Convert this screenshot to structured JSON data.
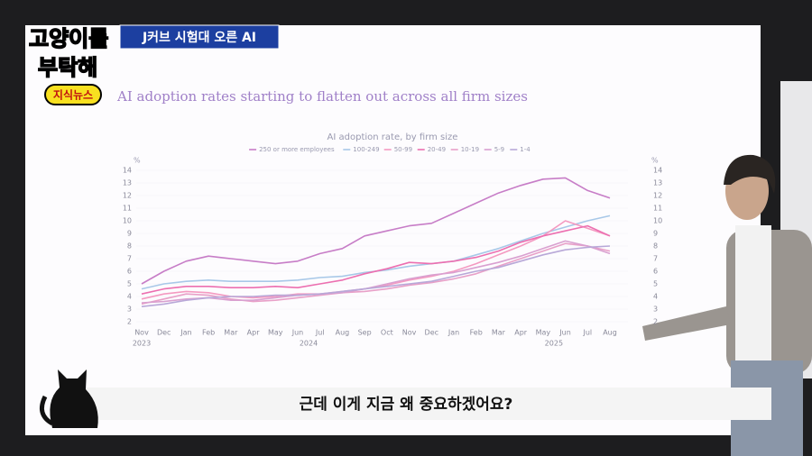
{
  "logo": {
    "line1": "고양이를",
    "line2": "부탁해",
    "tag": "지식뉴스"
  },
  "banner": "J커브 시험대 오른 AI",
  "subtitle": "근데 이게 지금 왜 중요하겠어요?",
  "chart_data": {
    "type": "line",
    "title": "AI adoption rates starting to flatten out across all firm sizes",
    "subtitle": "AI adoption rate, by firm size",
    "y_unit": "%",
    "categories": [
      "Nov",
      "Dec",
      "Jan",
      "Feb",
      "Mar",
      "Apr",
      "May",
      "Jun",
      "Jul",
      "Aug",
      "Sep",
      "Oct",
      "Nov",
      "Dec",
      "Jan",
      "Feb",
      "Mar",
      "Apr",
      "May",
      "Jun",
      "Jul",
      "Aug"
    ],
    "years": [
      "2023",
      null,
      null,
      null,
      null,
      null,
      null,
      "2024",
      null,
      null,
      null,
      null,
      null,
      null,
      null,
      null,
      null,
      null,
      "2025",
      null,
      null,
      null
    ],
    "ylim": [
      2,
      14
    ],
    "yticks": [
      2,
      3,
      4,
      5,
      6,
      7,
      8,
      9,
      10,
      11,
      12,
      13,
      14
    ],
    "series": [
      {
        "name": "250 or more employees",
        "color": "#c77dc7",
        "values": [
          5,
          6,
          6.8,
          7.2,
          7,
          6.8,
          6.6,
          6.8,
          7.4,
          7.8,
          8.8,
          9.2,
          9.6,
          9.8,
          10.6,
          11.4,
          12.2,
          12.8,
          13.3,
          13.4,
          12.4,
          11.8
        ]
      },
      {
        "name": "100-249",
        "color": "#a8c8e8",
        "values": [
          4.6,
          5,
          5.2,
          5.3,
          5.2,
          5.2,
          5.2,
          5.3,
          5.5,
          5.6,
          5.9,
          6.1,
          6.4,
          6.6,
          6.8,
          7.3,
          7.8,
          8.4,
          9,
          9.5,
          10,
          10.4
        ]
      },
      {
        "name": "50-99",
        "color": "#f49ac1",
        "values": [
          3.8,
          4.2,
          4.4,
          4.3,
          4,
          3.9,
          4,
          4.2,
          4.2,
          4.4,
          4.6,
          4.9,
          5.3,
          5.6,
          6,
          6.6,
          7.3,
          8,
          8.8,
          10,
          9.4,
          8.8
        ]
      },
      {
        "name": "20-49",
        "color": "#ec6fb0",
        "values": [
          4.2,
          4.6,
          4.8,
          4.8,
          4.7,
          4.7,
          4.8,
          4.7,
          5,
          5.3,
          5.8,
          6.2,
          6.7,
          6.6,
          6.8,
          7.1,
          7.6,
          8.3,
          8.8,
          9.2,
          9.6,
          8.8
        ]
      },
      {
        "name": "10-19",
        "color": "#e8a0c8",
        "values": [
          3.4,
          3.8,
          4.2,
          4.1,
          3.8,
          3.6,
          3.7,
          3.9,
          4.1,
          4.3,
          4.4,
          4.6,
          4.9,
          5.1,
          5.4,
          5.8,
          6.4,
          7,
          7.6,
          8.2,
          8,
          7.6
        ]
      },
      {
        "name": "5-9",
        "color": "#d9a0d0",
        "values": [
          3.5,
          3.6,
          3.8,
          3.9,
          3.7,
          3.7,
          3.9,
          4.1,
          4.2,
          4.3,
          4.6,
          5,
          5.4,
          5.7,
          5.9,
          6.3,
          6.7,
          7.2,
          7.8,
          8.4,
          8,
          7.4
        ]
      },
      {
        "name": "1-4",
        "color": "#b8a8d8",
        "values": [
          3.2,
          3.4,
          3.7,
          3.9,
          4,
          4,
          4.1,
          4.1,
          4.2,
          4.4,
          4.6,
          4.8,
          5,
          5.2,
          5.6,
          6,
          6.3,
          6.8,
          7.3,
          7.7,
          7.9,
          8
        ]
      }
    ]
  }
}
